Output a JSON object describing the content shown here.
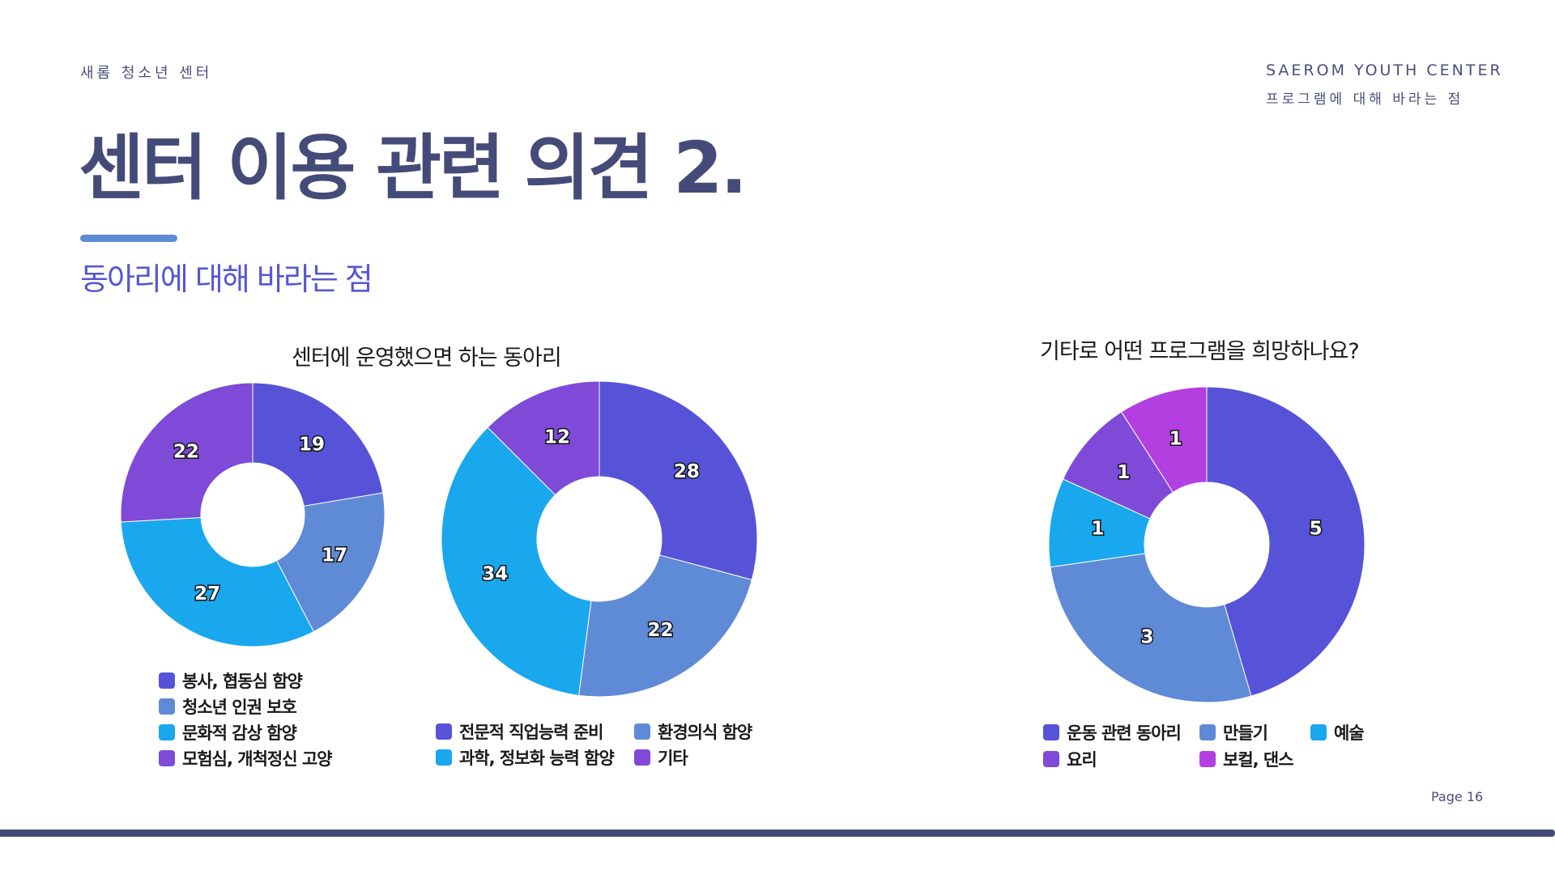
{
  "header": {
    "org_kr": "새롬 청소년 센터",
    "org_en": "SAEROM YOUTH CENTER",
    "section": "프로그램에 대해 바라는 점"
  },
  "slide": {
    "title": "센터 이용 관련 의견 2.",
    "subtitle": "동아리에 대해 바라는 점",
    "page": "Page 16"
  },
  "colors": {
    "blue_violet": "#5653d8",
    "steel_blue": "#5f8ad6",
    "sky_blue": "#19a7ee",
    "purple": "#7f4ad8",
    "magenta": "#b23fe0",
    "title_navy": "#454b78"
  },
  "chart_data": [
    {
      "type": "pie",
      "title": "센터에 운영했으면 하는 동아리",
      "categories": [
        "봉사, 협동심 함양",
        "청소년 인권 보호",
        "문화적 감상 함양",
        "모험심, 개척정신 고양"
      ],
      "values": [
        19,
        17,
        27,
        22
      ],
      "colors": [
        "#5653d8",
        "#5f8ad6",
        "#19a7ee",
        "#7f4ad8"
      ],
      "donut": true
    },
    {
      "type": "pie",
      "title": "",
      "categories": [
        "전문적 직업능력 준비",
        "환경의식 함양",
        "과학, 정보화 능력 함양",
        "기타"
      ],
      "values": [
        28,
        22,
        34,
        12
      ],
      "colors": [
        "#5653d8",
        "#5f8ad6",
        "#19a7ee",
        "#7f4ad8"
      ],
      "donut": true
    },
    {
      "type": "pie",
      "title": "기타로 어떤 프로그램을 희망하나요?",
      "categories": [
        "운동 관련 동아리",
        "만들기",
        "예술",
        "요리",
        "보컬, 댄스"
      ],
      "values": [
        5,
        3,
        1,
        1,
        1
      ],
      "colors": [
        "#5653d8",
        "#5f8ad6",
        "#19a7ee",
        "#7f4ad8",
        "#b23fe0"
      ],
      "donut": true
    }
  ]
}
